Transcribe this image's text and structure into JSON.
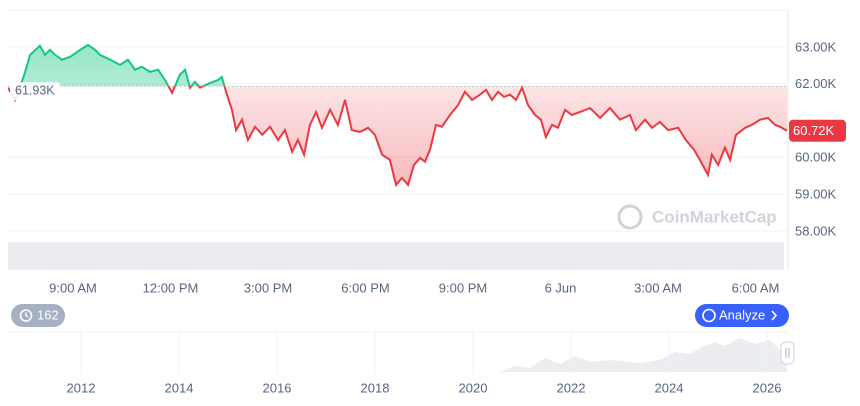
{
  "chart_data": {
    "type": "line",
    "x": [
      7.0,
      7.22,
      7.49,
      7.68,
      7.98,
      8.14,
      8.29,
      8.45,
      8.66,
      8.91,
      9.22,
      9.46,
      9.68,
      9.83,
      10.14,
      10.45,
      10.69,
      10.91,
      11.12,
      11.37,
      11.62,
      11.83,
      12.05,
      12.29,
      12.45,
      12.6,
      12.75,
      12.91,
      13.22,
      13.46,
      13.58,
      13.71,
      13.89,
      14.02,
      14.2,
      14.38,
      14.6,
      14.82,
      15.06,
      15.31,
      15.52,
      15.74,
      15.92,
      16.11,
      16.29,
      16.48,
      16.66,
      16.91,
      17.15,
      17.37,
      17.58,
      17.83,
      18.08,
      18.29,
      18.51,
      18.75,
      18.94,
      19.12,
      19.31,
      19.49,
      19.68,
      19.83,
      19.98,
      20.17,
      20.35,
      20.6,
      20.85,
      21.06,
      21.28,
      21.52,
      21.71,
      21.89,
      22.08,
      22.26,
      22.45,
      22.63,
      22.82,
      23.0,
      23.22,
      23.4,
      23.55,
      23.74,
      23.92,
      24.14,
      24.35,
      24.6,
      24.91,
      25.22,
      25.52,
      25.83,
      26.14,
      26.32,
      26.6,
      26.82,
      27.06,
      27.31,
      27.62,
      27.86,
      28.11,
      28.29,
      28.54,
      28.66,
      28.85,
      29.06,
      29.22,
      29.4,
      29.68,
      29.89,
      30.14,
      30.38,
      30.6,
      30.75,
      30.97
    ],
    "values": [
      61890,
      61560,
      62210,
      62780,
      63030,
      62780,
      62920,
      62780,
      62650,
      62730,
      62920,
      63050,
      62920,
      62780,
      62650,
      62510,
      62650,
      62380,
      62460,
      62320,
      62380,
      62100,
      61750,
      62240,
      62380,
      61890,
      62050,
      61890,
      62020,
      62100,
      62180,
      61780,
      61290,
      60740,
      61020,
      60470,
      60830,
      60610,
      60830,
      60470,
      60740,
      60150,
      60470,
      60070,
      60880,
      61230,
      60800,
      61290,
      60880,
      61560,
      60740,
      60690,
      60800,
      60610,
      60070,
      59930,
      59250,
      59440,
      59250,
      59790,
      59980,
      59880,
      60200,
      60880,
      60830,
      61150,
      61420,
      61780,
      61560,
      61700,
      61830,
      61560,
      61780,
      61640,
      61700,
      61560,
      61890,
      61420,
      61150,
      61020,
      60550,
      60880,
      60800,
      61290,
      61150,
      61230,
      61340,
      61070,
      61340,
      61020,
      61150,
      60740,
      61020,
      60800,
      60960,
      60740,
      60800,
      60470,
      60200,
      59930,
      59520,
      60070,
      59790,
      60260,
      59930,
      60610,
      60800,
      60880,
      61020,
      61070,
      60880,
      60830,
      60720
    ],
    "xlim": [
      7,
      31
    ],
    "xticks": [
      {
        "value": 9,
        "label": "9:00 AM"
      },
      {
        "value": 12,
        "label": "12:00 PM"
      },
      {
        "value": 15,
        "label": "3:00 PM"
      },
      {
        "value": 18,
        "label": "6:00 PM"
      },
      {
        "value": 21,
        "label": "9:00 PM"
      },
      {
        "value": 24,
        "label": "6 Jun"
      },
      {
        "value": 27,
        "label": "3:00 AM"
      },
      {
        "value": 30,
        "label": "6:00 AM"
      }
    ],
    "ylim": [
      56940,
      64000
    ],
    "yticks": [
      {
        "value": 63000,
        "label": "63.00K"
      },
      {
        "value": 62000,
        "label": "62.00K"
      },
      {
        "value": 60000,
        "label": "60.00K"
      },
      {
        "value": 59000,
        "label": "59.00K"
      },
      {
        "value": 58000,
        "label": "58.00K"
      }
    ],
    "baseline": {
      "value": 61930,
      "label": "61.93K"
    },
    "current_price": {
      "value": 60720,
      "label": "60.72K"
    },
    "colors": {
      "up": "#16c784",
      "down": "#ea3943"
    },
    "grid": true,
    "watermark": "CoinMarketCap"
  },
  "controls": {
    "history_count": 162,
    "analyze_button": "Analyze"
  },
  "navigator": {
    "years": [
      2012,
      2014,
      2016,
      2018,
      2020,
      2022,
      2024,
      2026
    ]
  }
}
